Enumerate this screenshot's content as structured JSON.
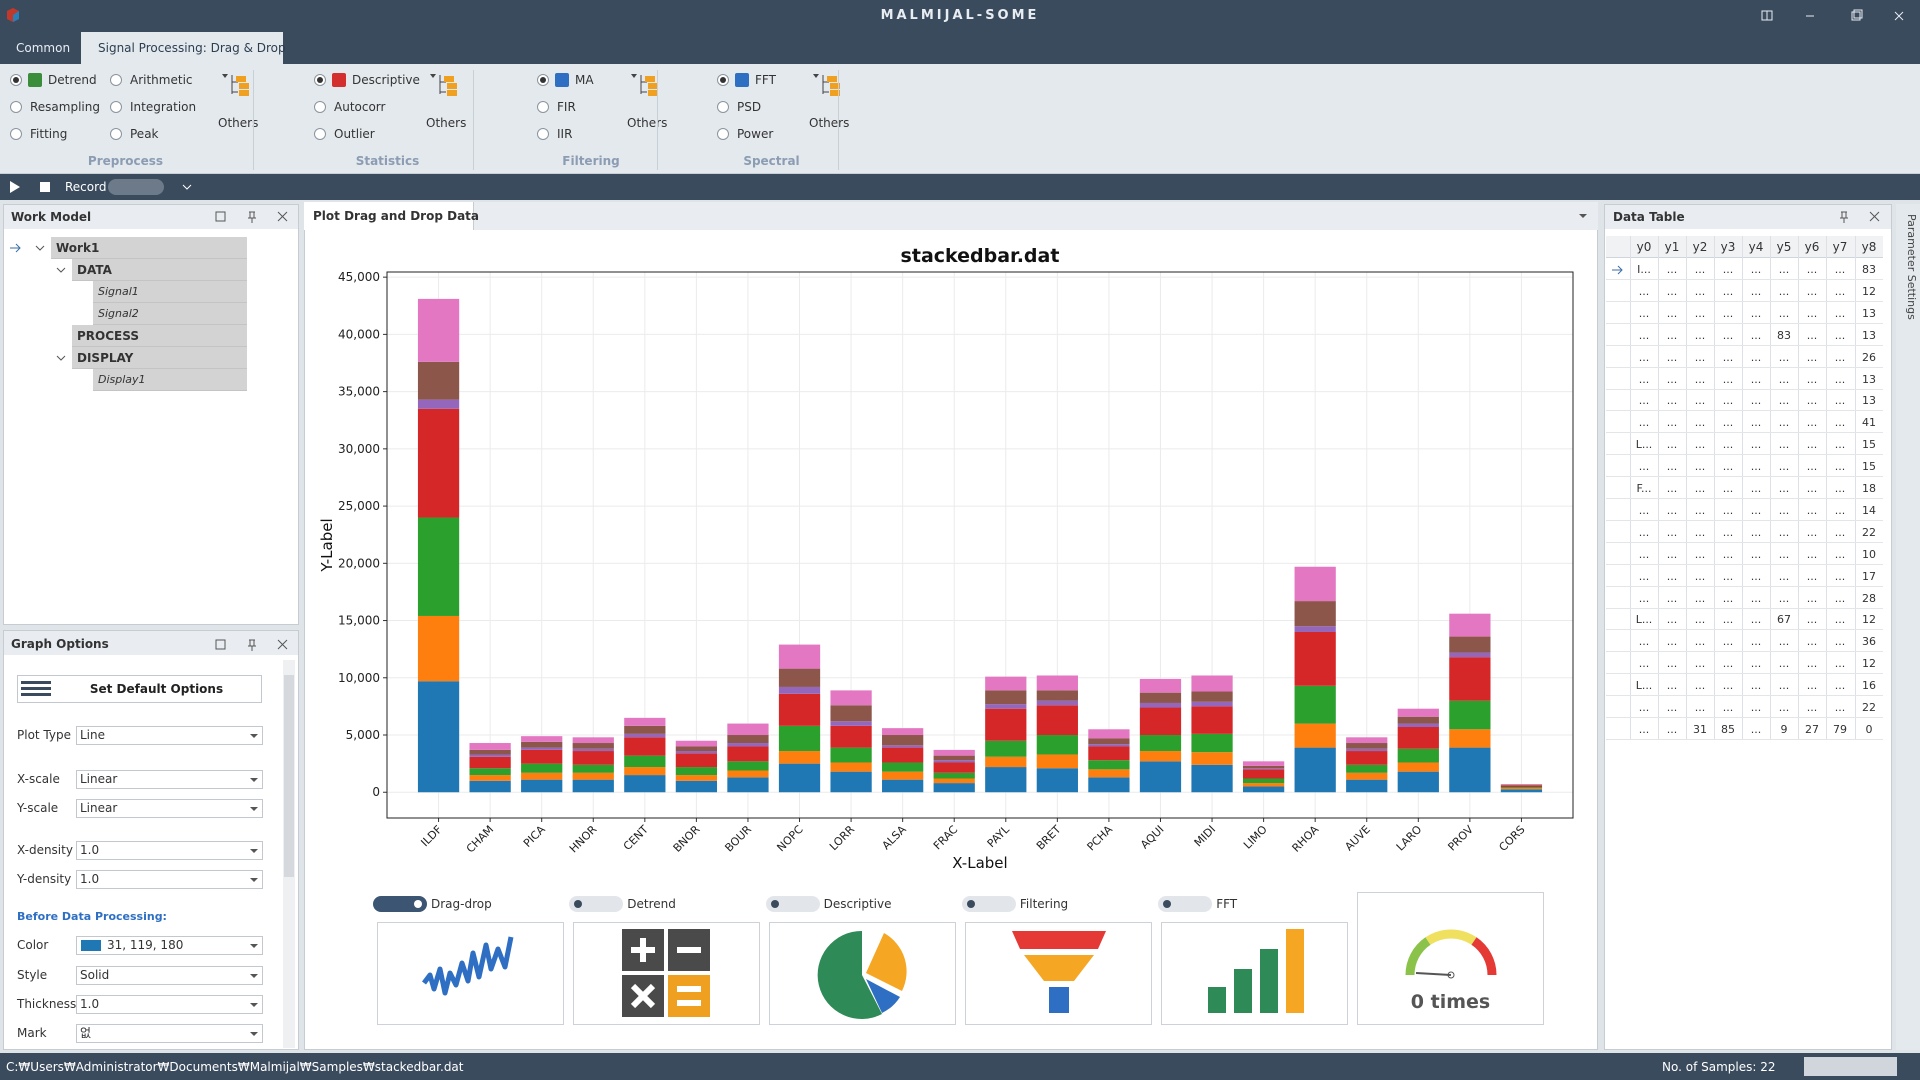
{
  "app": {
    "title": "MALMIJAL-SOME"
  },
  "tabs": [
    "Common",
    "Signal Processing: Drag & Drop"
  ],
  "ribbon": [
    {
      "label": "Preprocess",
      "items": [
        "Detrend",
        "Resampling",
        "Fitting",
        "Arithmetic",
        "Integration",
        "Peak"
      ],
      "others": "Others"
    },
    {
      "label": "Statistics",
      "items": [
        "Descriptive",
        "Autocorr",
        "Outlier"
      ],
      "others": "Others"
    },
    {
      "label": "Filtering",
      "items": [
        "MA",
        "FIR",
        "IIR"
      ],
      "others": "Others"
    },
    {
      "label": "Spectral",
      "items": [
        "FFT",
        "PSD",
        "Power"
      ],
      "others": "Others"
    }
  ],
  "toolbar": {
    "record": "Record"
  },
  "work_model": {
    "title": "Work Model",
    "tree": [
      {
        "label": "Work1",
        "children": [
          {
            "label": "DATA",
            "children": [
              {
                "label": "Signal1"
              },
              {
                "label": "Signal2"
              }
            ]
          },
          {
            "label": "PROCESS"
          },
          {
            "label": "DISPLAY",
            "children": [
              {
                "label": "Display1"
              }
            ]
          }
        ]
      }
    ]
  },
  "graph_options": {
    "title": "Graph Options",
    "button": "Set Default Options",
    "fields": [
      {
        "label": "Plot Type",
        "value": "Line"
      },
      {
        "label": "X-scale",
        "value": "Linear"
      },
      {
        "label": "Y-scale",
        "value": "Linear"
      },
      {
        "label": "X-density",
        "value": "1.0"
      },
      {
        "label": "Y-density",
        "value": "1.0"
      }
    ],
    "section": "Before Data Processing:",
    "fields_after": [
      {
        "label": "Color",
        "value": "31, 119, 180"
      },
      {
        "label": "Style",
        "value": "Solid"
      },
      {
        "label": "Thickness",
        "value": "1.0"
      },
      {
        "label": "Mark",
        "value": "없"
      }
    ]
  },
  "plot_panel": {
    "tab": "Plot Drag and Drop Data"
  },
  "chart_data": {
    "type": "stacked_bar",
    "title": "stackedbar.dat",
    "x_label": "X-Label",
    "y_label": "Y-Label",
    "categories": [
      "ILDF",
      "CHAM",
      "PICA",
      "HNOR",
      "CENT",
      "BNOR",
      "BOUR",
      "NOPC",
      "LORR",
      "ALSA",
      "FRAC",
      "PAYL",
      "BRET",
      "PCHA",
      "AQUI",
      "MIDI",
      "LIMO",
      "RHOA",
      "AUVE",
      "LARO",
      "PROV",
      "CORS"
    ],
    "series": [
      {
        "color": "#1f77b4",
        "values": [
          9700,
          1000,
          1100,
          1100,
          1500,
          1000,
          1300,
          2500,
          1800,
          1100,
          800,
          2200,
          2100,
          1300,
          2700,
          2400,
          500,
          3900,
          1100,
          1800,
          3900,
          250
        ]
      },
      {
        "color": "#ff7f0e",
        "values": [
          5700,
          500,
          600,
          600,
          700,
          500,
          600,
          1100,
          800,
          700,
          400,
          900,
          1200,
          700,
          900,
          1100,
          300,
          2100,
          600,
          800,
          1600,
          100
        ]
      },
      {
        "color": "#2ca02c",
        "values": [
          8600,
          600,
          800,
          700,
          1000,
          700,
          800,
          2200,
          1300,
          800,
          500,
          1400,
          1700,
          800,
          1400,
          1600,
          400,
          3300,
          700,
          1200,
          2500,
          100
        ]
      },
      {
        "color": "#d62728",
        "values": [
          9500,
          1000,
          1200,
          1200,
          1600,
          1200,
          1300,
          2800,
          1900,
          1300,
          900,
          2800,
          2600,
          1200,
          2400,
          2400,
          800,
          4700,
          1200,
          1900,
          3800,
          150
        ]
      },
      {
        "color": "#9467bd",
        "values": [
          800,
          200,
          200,
          200,
          300,
          200,
          300,
          600,
          400,
          200,
          200,
          400,
          400,
          200,
          400,
          400,
          100,
          500,
          200,
          300,
          400,
          20
        ]
      },
      {
        "color": "#8c564b",
        "values": [
          3300,
          400,
          500,
          500,
          700,
          400,
          700,
          1600,
          1400,
          900,
          400,
          1200,
          900,
          500,
          900,
          900,
          200,
          2200,
          500,
          600,
          1400,
          50
        ]
      },
      {
        "color": "#e377c2",
        "values": [
          5500,
          600,
          500,
          500,
          700,
          500,
          1000,
          2100,
          1300,
          600,
          500,
          1200,
          1300,
          800,
          1200,
          1400,
          400,
          3000,
          500,
          700,
          2000,
          30
        ]
      }
    ],
    "ylim": [
      -2250,
      45450
    ],
    "yticks": [
      0,
      {
        "value": 5000,
        "label": "5,000"
      },
      {
        "value": 10000,
        "label": "10,000"
      },
      {
        "value": 15000,
        "label": "15,000"
      },
      {
        "value": 20000,
        "label": "20,000"
      },
      {
        "value": 25000,
        "label": "25,000"
      },
      {
        "value": 30000,
        "label": "30,000"
      },
      {
        "value": 35000,
        "label": "35,000"
      },
      {
        "value": 40000,
        "label": "40,000"
      },
      {
        "value": 45000,
        "label": "45,000"
      }
    ],
    "grid": true
  },
  "toggles": [
    "Drag-drop",
    "Detrend",
    "Descriptive",
    "Filtering",
    "FFT"
  ],
  "counter": "0 times",
  "data_table": {
    "title": "Data Table",
    "columns": [
      "y0",
      "y1",
      "y2",
      "y3",
      "y4",
      "y5",
      "y6",
      "y7",
      "y8"
    ],
    "rows": [
      [
        "I...",
        "...",
        "...",
        "...",
        "...",
        "...",
        "...",
        "...",
        "83"
      ],
      [
        "...",
        "...",
        "...",
        "...",
        "...",
        "...",
        "...",
        "...",
        "12"
      ],
      [
        "...",
        "...",
        "...",
        "...",
        "...",
        "...",
        "...",
        "...",
        "13"
      ],
      [
        "...",
        "...",
        "...",
        "...",
        "...",
        "83",
        "...",
        "...",
        "13"
      ],
      [
        "...",
        "...",
        "...",
        "...",
        "...",
        "...",
        "...",
        "...",
        "26"
      ],
      [
        "...",
        "...",
        "...",
        "...",
        "...",
        "...",
        "...",
        "...",
        "13"
      ],
      [
        "...",
        "...",
        "...",
        "...",
        "...",
        "...",
        "...",
        "...",
        "13"
      ],
      [
        "...",
        "...",
        "...",
        "...",
        "...",
        "...",
        "...",
        "...",
        "41"
      ],
      [
        "L...",
        "...",
        "...",
        "...",
        "...",
        "...",
        "...",
        "...",
        "15"
      ],
      [
        "...",
        "...",
        "...",
        "...",
        "...",
        "...",
        "...",
        "...",
        "15"
      ],
      [
        "F...",
        "...",
        "...",
        "...",
        "...",
        "...",
        "...",
        "...",
        "18"
      ],
      [
        "...",
        "...",
        "...",
        "...",
        "...",
        "...",
        "...",
        "...",
        "14"
      ],
      [
        "...",
        "...",
        "...",
        "...",
        "...",
        "...",
        "...",
        "...",
        "22"
      ],
      [
        "...",
        "...",
        "...",
        "...",
        "...",
        "...",
        "...",
        "...",
        "10"
      ],
      [
        "...",
        "...",
        "...",
        "...",
        "...",
        "...",
        "...",
        "...",
        "17"
      ],
      [
        "...",
        "...",
        "...",
        "...",
        "...",
        "...",
        "...",
        "...",
        "28"
      ],
      [
        "L...",
        "...",
        "...",
        "...",
        "...",
        "67",
        "...",
        "...",
        "12"
      ],
      [
        "...",
        "...",
        "...",
        "...",
        "...",
        "...",
        "...",
        "...",
        "36"
      ],
      [
        "...",
        "...",
        "...",
        "...",
        "...",
        "...",
        "...",
        "...",
        "12"
      ],
      [
        "L...",
        "...",
        "...",
        "...",
        "...",
        "...",
        "...",
        "...",
        "16"
      ],
      [
        "...",
        "...",
        "...",
        "...",
        "...",
        "...",
        "...",
        "...",
        "22"
      ],
      [
        "...",
        "...",
        "31",
        "85",
        "...",
        "9",
        "27",
        "79",
        "0"
      ]
    ]
  },
  "side_tab": "Parameter Settings",
  "status": {
    "path": "C:₩Users₩Administrator₩Documents₩Malmijal₩Samples₩stackedbar.dat",
    "samples": "No. of Samples: 22"
  }
}
